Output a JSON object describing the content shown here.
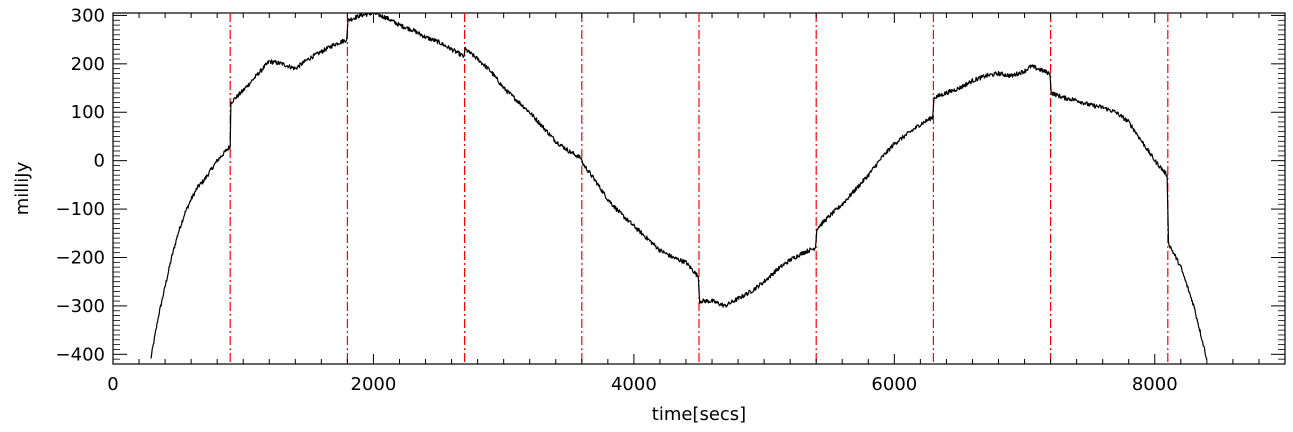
{
  "chart_data": {
    "type": "line",
    "title": "",
    "xlabel": "time[secs]",
    "ylabel": "milliJy",
    "xlim": [
      0,
      9000
    ],
    "ylim": [
      -420,
      305
    ],
    "x_ticks": [
      0,
      2000,
      4000,
      6000,
      8000
    ],
    "x_tick_labels": [
      "0",
      "2000",
      "4000",
      "6000",
      "8000"
    ],
    "y_ticks": [
      -400,
      -300,
      -200,
      -100,
      0,
      100,
      200,
      300
    ],
    "y_tick_labels": [
      "−400",
      "−300",
      "−200",
      "−100",
      "0",
      "100",
      "200",
      "300"
    ],
    "grid": false,
    "series": [
      {
        "color": "#000000",
        "x": [
          290,
          350,
          400,
          450,
          500,
          550,
          600,
          650,
          700,
          750,
          800,
          850,
          900,
          905,
          1000,
          1100,
          1200,
          1300,
          1400,
          1500,
          1600,
          1700,
          1795,
          1805,
          1900,
          2000,
          2100,
          2200,
          2300,
          2400,
          2500,
          2600,
          2695,
          2705,
          2800,
          2900,
          3000,
          3100,
          3200,
          3300,
          3400,
          3500,
          3595,
          3605,
          3700,
          3800,
          3900,
          4000,
          4100,
          4200,
          4300,
          4400,
          4495,
          4505,
          4600,
          4700,
          4800,
          4900,
          5000,
          5100,
          5200,
          5300,
          5395,
          5405,
          5500,
          5600,
          5700,
          5800,
          5900,
          6000,
          6100,
          6200,
          6295,
          6305,
          6400,
          6500,
          6600,
          6700,
          6800,
          6900,
          7000,
          7050,
          7100,
          7195,
          7205,
          7300,
          7400,
          7500,
          7600,
          7700,
          7800,
          7900,
          8000,
          8095,
          8105,
          8200,
          8300,
          8400
        ],
        "y": [
          -410,
          -320,
          -260,
          -200,
          -150,
          -110,
          -80,
          -55,
          -40,
          -20,
          0,
          15,
          30,
          120,
          145,
          175,
          205,
          200,
          190,
          210,
          225,
          240,
          250,
          290,
          300,
          305,
          295,
          280,
          270,
          255,
          245,
          230,
          215,
          230,
          210,
          185,
          150,
          125,
          100,
          70,
          40,
          20,
          5,
          -5,
          -40,
          -80,
          -110,
          -135,
          -160,
          -185,
          -200,
          -210,
          -240,
          -290,
          -290,
          -300,
          -285,
          -270,
          -250,
          -225,
          -205,
          -190,
          -180,
          -140,
          -115,
          -90,
          -60,
          -30,
          5,
          35,
          55,
          75,
          90,
          130,
          140,
          150,
          165,
          175,
          180,
          175,
          185,
          195,
          190,
          180,
          140,
          130,
          125,
          115,
          110,
          100,
          80,
          40,
          0,
          -30,
          -170,
          -220,
          -300,
          -410
        ]
      }
    ],
    "markers": {
      "type": "vertical-dashdot",
      "color": "#ff0000",
      "x": [
        900,
        1800,
        2700,
        3600,
        4500,
        5400,
        6300,
        7200,
        8100
      ]
    }
  }
}
